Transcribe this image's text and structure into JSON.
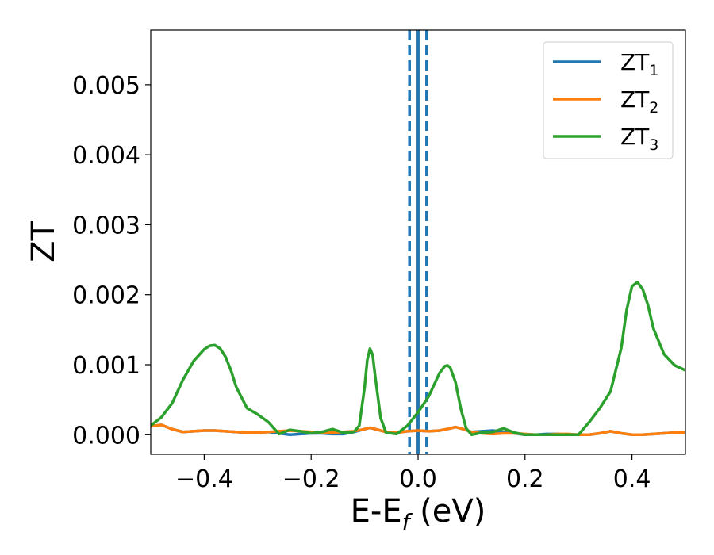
{
  "chart_data": {
    "type": "line",
    "xlabel": "E-E",
    "xlabel_sub": "f",
    "xlabel_unit": " (eV)",
    "ylabel": "ZT",
    "xlim": [
      -0.5,
      0.5
    ],
    "ylim": [
      -0.00028,
      0.00578
    ],
    "xticks": [
      -0.4,
      -0.2,
      0.0,
      0.2,
      0.4
    ],
    "xtick_labels": [
      "−0.4",
      "−0.2",
      "0.0",
      "0.2",
      "0.4"
    ],
    "yticks": [
      0.0,
      0.001,
      0.002,
      0.003,
      0.004,
      0.005
    ],
    "ytick_labels": [
      "0.000",
      "0.001",
      "0.002",
      "0.003",
      "0.004",
      "0.005"
    ],
    "grid": false,
    "legend_position": "top-right",
    "vertical_lines": [
      {
        "x": 0.0,
        "color": "#000000",
        "style": "solid"
      },
      {
        "x": 0.0,
        "color": "#1f77b4",
        "style": "solid"
      },
      {
        "x": -0.016,
        "color": "#1f77b4",
        "style": "dashed"
      },
      {
        "x": 0.016,
        "color": "#1f77b4",
        "style": "dashed"
      }
    ],
    "series": [
      {
        "name": "ZT",
        "sub": "1",
        "color": "#1f77b4",
        "x": [
          -0.5,
          -0.48,
          -0.46,
          -0.44,
          -0.42,
          -0.4,
          -0.38,
          -0.36,
          -0.34,
          -0.32,
          -0.3,
          -0.28,
          -0.26,
          -0.25,
          -0.24,
          -0.22,
          -0.2,
          -0.18,
          -0.16,
          -0.14,
          -0.12,
          -0.1,
          -0.09,
          -0.08,
          -0.06,
          -0.04,
          -0.02,
          0.0,
          0.02,
          0.04,
          0.06,
          0.07,
          0.08,
          0.1,
          0.12,
          0.14,
          0.16,
          0.18,
          0.2,
          0.22,
          0.24,
          0.26,
          0.28,
          0.3,
          0.32,
          0.34,
          0.36,
          0.38,
          0.4,
          0.42,
          0.44,
          0.46,
          0.48,
          0.5
        ],
        "y": [
          0.00012,
          0.00014,
          8e-05,
          4e-05,
          5e-05,
          6e-05,
          6e-05,
          5e-05,
          4e-05,
          3e-05,
          3e-05,
          4e-05,
          2e-05,
          1e-05,
          0.0,
          1e-05,
          2e-05,
          2e-05,
          1e-05,
          1e-05,
          4e-05,
          8e-05,
          0.0001,
          8e-05,
          4e-05,
          3e-05,
          5e-05,
          6e-05,
          5e-05,
          6e-05,
          9e-05,
          0.00011,
          9e-05,
          4e-05,
          5e-05,
          6e-05,
          4e-05,
          2e-05,
          0.0,
          0.0,
          1e-05,
          1e-05,
          0.0,
          0.0,
          0.0,
          2e-05,
          5e-05,
          2e-05,
          0.0,
          0.0,
          1e-05,
          2e-05,
          3e-05,
          3e-05
        ]
      },
      {
        "name": "ZT",
        "sub": "2",
        "color": "#ff7f0e",
        "x": [
          -0.5,
          -0.48,
          -0.46,
          -0.44,
          -0.42,
          -0.4,
          -0.38,
          -0.36,
          -0.34,
          -0.32,
          -0.3,
          -0.28,
          -0.26,
          -0.24,
          -0.22,
          -0.2,
          -0.18,
          -0.16,
          -0.14,
          -0.12,
          -0.1,
          -0.09,
          -0.08,
          -0.06,
          -0.04,
          -0.02,
          0.0,
          0.02,
          0.04,
          0.06,
          0.07,
          0.08,
          0.1,
          0.12,
          0.14,
          0.16,
          0.18,
          0.2,
          0.22,
          0.24,
          0.26,
          0.28,
          0.3,
          0.32,
          0.34,
          0.36,
          0.38,
          0.4,
          0.42,
          0.44,
          0.46,
          0.48,
          0.5
        ],
        "y": [
          0.00012,
          0.00014,
          8e-05,
          4e-05,
          5e-05,
          6e-05,
          6e-05,
          5e-05,
          4e-05,
          3e-05,
          3e-05,
          4e-05,
          5e-05,
          6e-05,
          5e-05,
          4e-05,
          3e-05,
          3e-05,
          4e-05,
          5e-05,
          8e-05,
          0.0001,
          8e-05,
          4e-05,
          3e-05,
          5e-05,
          6e-05,
          5e-05,
          6e-05,
          9e-05,
          0.00011,
          9e-05,
          4e-05,
          2e-05,
          1e-05,
          2e-05,
          2e-05,
          1e-05,
          0.0,
          0.0,
          1e-05,
          1e-05,
          0.0,
          0.0,
          2e-05,
          5e-05,
          2e-05,
          0.0,
          0.0,
          1e-05,
          2e-05,
          3e-05,
          3e-05
        ]
      },
      {
        "name": "ZT",
        "sub": "3",
        "color": "#2ca02c",
        "x": [
          -0.5,
          -0.48,
          -0.46,
          -0.44,
          -0.42,
          -0.4,
          -0.39,
          -0.38,
          -0.37,
          -0.36,
          -0.35,
          -0.34,
          -0.32,
          -0.3,
          -0.28,
          -0.26,
          -0.24,
          -0.22,
          -0.2,
          -0.18,
          -0.16,
          -0.14,
          -0.12,
          -0.11,
          -0.1,
          -0.095,
          -0.09,
          -0.085,
          -0.08,
          -0.07,
          -0.06,
          -0.04,
          -0.02,
          0.0,
          0.02,
          0.04,
          0.05,
          0.055,
          0.06,
          0.07,
          0.08,
          0.09,
          0.1,
          0.12,
          0.14,
          0.16,
          0.18,
          0.2,
          0.22,
          0.24,
          0.26,
          0.28,
          0.3,
          0.32,
          0.34,
          0.36,
          0.38,
          0.39,
          0.4,
          0.41,
          0.42,
          0.43,
          0.44,
          0.46,
          0.48,
          0.5
        ],
        "y": [
          0.00013,
          0.00025,
          0.00045,
          0.00078,
          0.00105,
          0.00122,
          0.00127,
          0.00128,
          0.00123,
          0.00111,
          0.00092,
          0.00068,
          0.00038,
          0.00029,
          0.00018,
          1e-05,
          7e-05,
          5e-05,
          2e-05,
          4e-05,
          8e-05,
          3e-05,
          4e-05,
          0.00013,
          0.00068,
          0.00107,
          0.00123,
          0.00114,
          0.00082,
          0.00024,
          3e-05,
          1e-05,
          0.00013,
          0.00032,
          0.00055,
          0.00088,
          0.00098,
          0.00099,
          0.00096,
          0.00075,
          0.00037,
          9e-05,
          0.0,
          3e-05,
          4e-05,
          9e-05,
          3e-05,
          0.0,
          0.0,
          0.0,
          0.0,
          0.0,
          0.0,
          0.00018,
          0.00038,
          0.00062,
          0.00124,
          0.00178,
          0.00212,
          0.00218,
          0.00208,
          0.00185,
          0.00152,
          0.00115,
          0.00099,
          0.00092
        ]
      }
    ]
  }
}
